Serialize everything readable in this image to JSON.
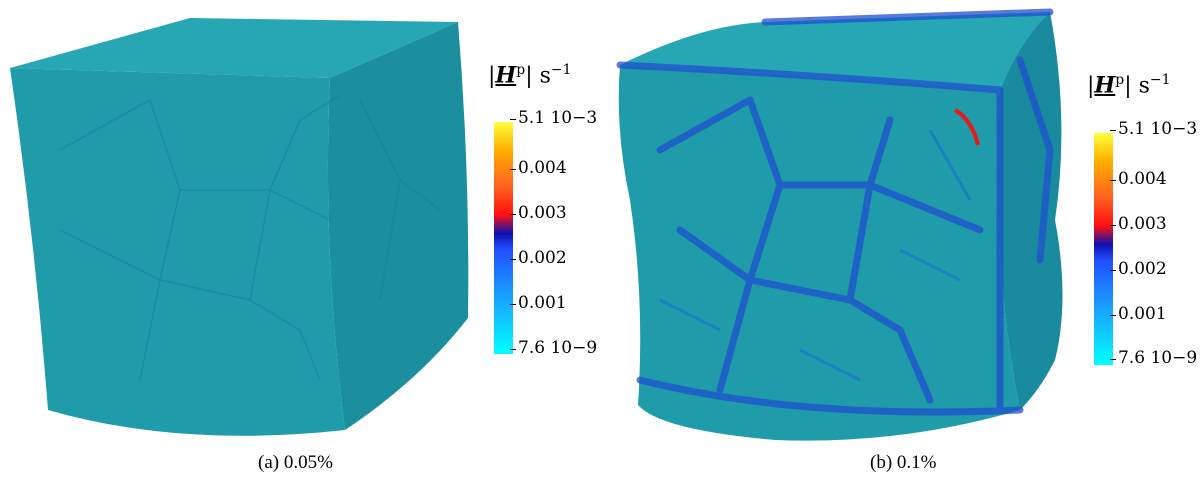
{
  "panels": [
    {
      "caption": "(a) 0.05%",
      "colorbar": {
        "title_prefix": "|",
        "title_symbol": "H",
        "title_sup": "p",
        "title_suffix": "| s",
        "title_unit_exp": "−1",
        "ticks": [
          "5.1 10−3",
          "0.004",
          "0.003",
          "0.002",
          "0.001",
          "7.6 10−9"
        ]
      }
    },
    {
      "caption": "(b) 0.1%",
      "colorbar": {
        "title_prefix": "|",
        "title_symbol": "H",
        "title_sup": "p",
        "title_suffix": "| s",
        "title_unit_exp": "−1",
        "ticks": [
          "5.1 10−3",
          "0.004",
          "0.003",
          "0.002",
          "0.001",
          "7.6 10−9"
        ]
      }
    }
  ],
  "colors": {
    "cube_base": "#1e9aa8",
    "cube_top": "#26a6b4",
    "cube_right": "#1a8e9c",
    "grain_edge": "#1b7fa0",
    "strained": "#1f4fd0"
  }
}
